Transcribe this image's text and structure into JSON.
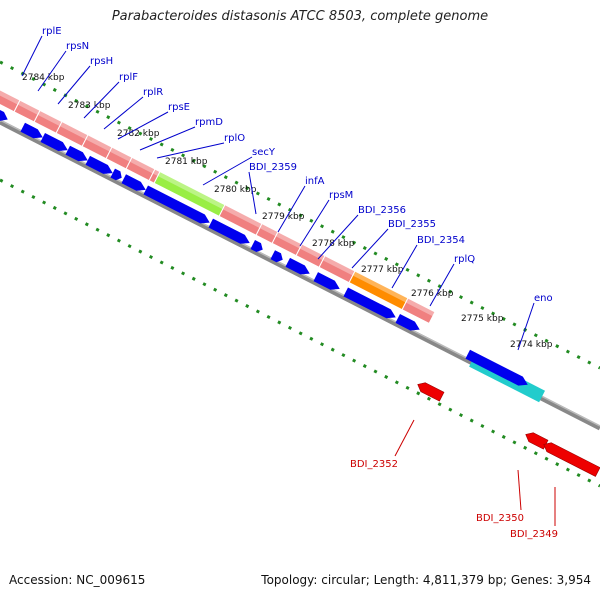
{
  "title": "Parabacteroides distasonis ATCC 8503, complete genome",
  "footer": {
    "accession_label": "Accession:",
    "accession": "NC_009615",
    "topology_label": "Topology:",
    "topology": "circular",
    "length_label": "Length:",
    "length": "4,811,379 bp",
    "genes_label": "Genes:",
    "genes": "3,954"
  },
  "ticks": [
    "2784 kbp",
    "2783 kbp",
    "2782 kbp",
    "2781 kbp",
    "2780 kbp",
    "2779 kbp",
    "2778 kbp",
    "2777 kbp",
    "2776 kbp",
    "2775 kbp",
    "2774 kbp"
  ],
  "forward_genes": [
    {
      "name": "rplE",
      "color": "#f08080"
    },
    {
      "name": "rpsN",
      "color": "#f08080"
    },
    {
      "name": "rpsH",
      "color": "#f08080"
    },
    {
      "name": "rplF",
      "color": "#f08080"
    },
    {
      "name": "rplR",
      "color": "#f08080"
    },
    {
      "name": "rpsE",
      "color": "#f08080"
    },
    {
      "name": "rpmD",
      "color": "#f08080"
    },
    {
      "name": "rplO",
      "color": "#f08080"
    },
    {
      "name": "secY",
      "color": "#99ee44"
    },
    {
      "name": "BDI_2359",
      "color": "#f08080"
    },
    {
      "name": "infA",
      "color": "#f08080"
    },
    {
      "name": "rpsM",
      "color": "#f08080"
    },
    {
      "name": "BDI_2356",
      "color": "#f08080"
    },
    {
      "name": "BDI_2355",
      "color": "#f08080"
    },
    {
      "name": "BDI_2354",
      "color": "#ff8c00"
    },
    {
      "name": "rplQ",
      "color": "#f08080"
    },
    {
      "name": "eno",
      "color": "#22cccc"
    }
  ],
  "reverse_genes": [
    {
      "name": "BDI_2352",
      "color": "#ff0000"
    },
    {
      "name": "BDI_2350",
      "color": "#ff0000"
    },
    {
      "name": "BDI_2349",
      "color": "#ff0000"
    }
  ],
  "colors": {
    "forward_label": "#0000cc",
    "reverse_label": "#cc0000",
    "cds_arrow": "#0000ee",
    "backbone": "#888888",
    "tick": "#228b22"
  }
}
